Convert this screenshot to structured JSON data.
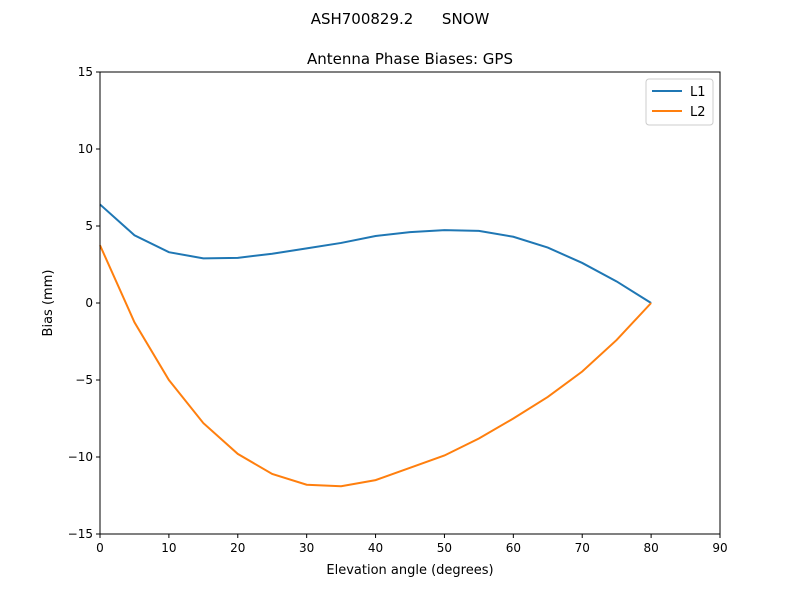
{
  "chart_data": {
    "type": "line",
    "suptitle": "ASH700829.2      SNOW",
    "title": "Antenna Phase Biases: GPS",
    "xlabel": "Elevation angle (degrees)",
    "ylabel": "Bias (mm)",
    "xlim": [
      0,
      90
    ],
    "ylim": [
      -15,
      15
    ],
    "xticks": [
      0,
      10,
      20,
      30,
      40,
      50,
      60,
      70,
      80,
      90
    ],
    "yticks": [
      -15,
      -10,
      -5,
      0,
      5,
      10,
      15
    ],
    "ytick_labels": [
      "−15",
      "−10",
      "−5",
      "0",
      "5",
      "10",
      "15"
    ],
    "grid": false,
    "legend_position": "top-right",
    "x": [
      0,
      5,
      10,
      15,
      20,
      25,
      30,
      35,
      40,
      45,
      50,
      55,
      60,
      65,
      70,
      75,
      80
    ],
    "series": [
      {
        "name": "L1",
        "color": "#1f77b4",
        "values": [
          6.4,
          4.4,
          3.3,
          2.9,
          2.93,
          3.2,
          3.55,
          3.9,
          4.35,
          4.6,
          4.73,
          4.68,
          4.3,
          3.6,
          2.6,
          1.4,
          0.0
        ]
      },
      {
        "name": "L2",
        "color": "#ff7f0e",
        "values": [
          3.75,
          -1.25,
          -5.0,
          -7.8,
          -9.8,
          -11.1,
          -11.8,
          -11.9,
          -11.5,
          -10.7,
          -9.9,
          -8.8,
          -7.5,
          -6.1,
          -4.45,
          -2.4,
          0.0
        ]
      }
    ]
  }
}
